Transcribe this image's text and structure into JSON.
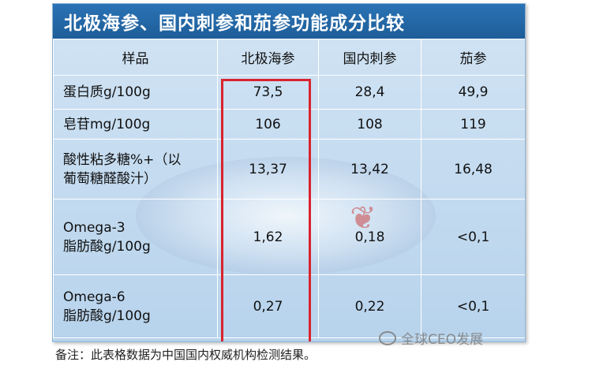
{
  "title": "北极海参、国内刺参和茄参功能成分比较",
  "columns": [
    "样品",
    "北极海参",
    "国内刺参",
    "茄参"
  ],
  "rows": [
    {
      "label": "蛋白质g/100g",
      "values": [
        "73,5",
        "28,4",
        "49,9"
      ]
    },
    {
      "label": "皂苷mg/100g",
      "values": [
        "106",
        "108",
        "119"
      ]
    },
    {
      "label_line1": "酸性粘多糖%+（以",
      "label_line2": "葡萄糖醛酸汁）",
      "values": [
        "13,37",
        "13,42",
        "16,48"
      ]
    },
    {
      "label_line1": "Omega-3",
      "label_line2": "脂肪酸g/100g",
      "values": [
        "1,62",
        "0,18",
        "<0,1"
      ]
    },
    {
      "label_line1": "Omega-6",
      "label_line2": "脂肪酸g/100g",
      "values": [
        "0,27",
        "0,22",
        "<0,1"
      ]
    }
  ],
  "footnote": "备注：此表格数据为中国国内权威机构检测结果。",
  "watermark": "全球CEO发展",
  "colors": {
    "title_bg": "#1e5d98",
    "highlight_border": "#d9232e",
    "table_bg": "#c9def0"
  }
}
